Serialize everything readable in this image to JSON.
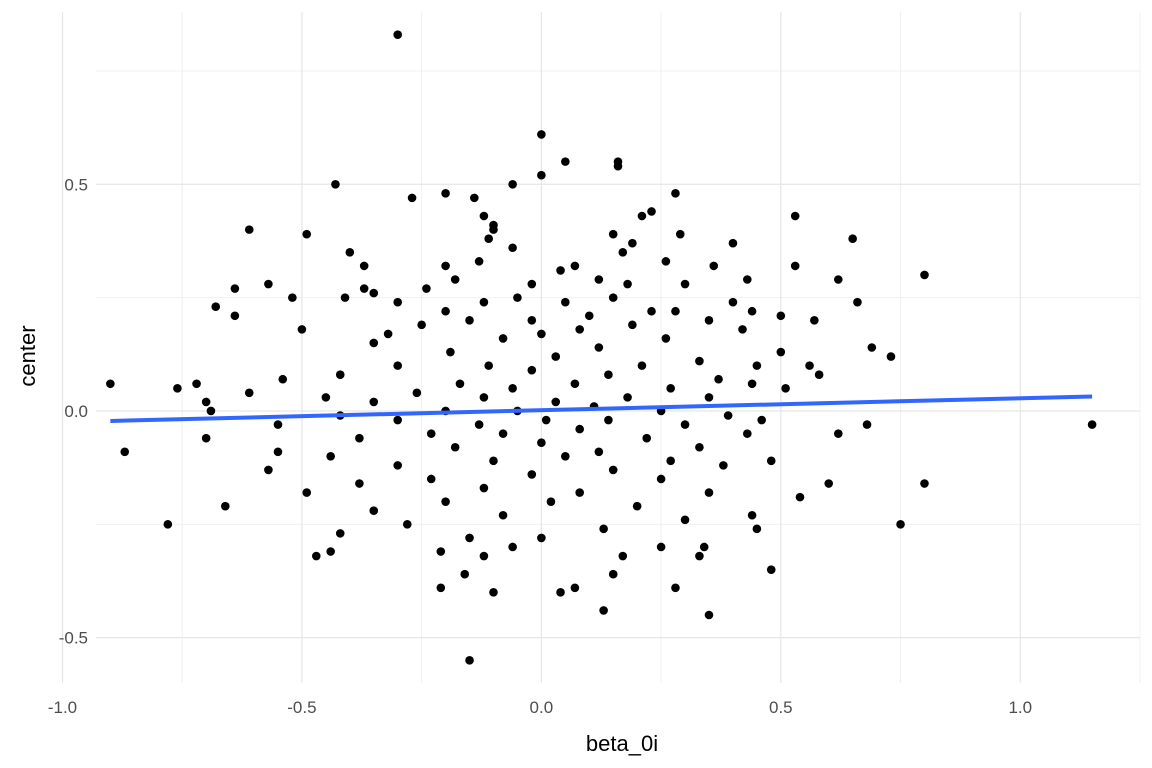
{
  "chart_data": {
    "type": "scatter",
    "title": "",
    "xlabel": "beta_0i",
    "ylabel": "center",
    "xlim": [
      -0.93,
      1.25
    ],
    "ylim": [
      -0.6,
      0.88
    ],
    "x_ticks": [
      -1.0,
      -0.5,
      0.0,
      0.5,
      1.0
    ],
    "x_tick_labels": [
      "-1.0",
      "-0.5",
      "0.0",
      "0.5",
      "1.0"
    ],
    "y_ticks": [
      -0.5,
      0.0,
      0.5
    ],
    "y_tick_labels": [
      "-0.5",
      "0.0",
      "0.5"
    ],
    "grid": true,
    "theme": "minimal",
    "point_color": "#000000",
    "fit_line": {
      "x0": -0.9,
      "y0": -0.022,
      "x1": 1.15,
      "y1": 0.032,
      "color": "#3366FF"
    },
    "points": [
      [
        -0.3,
        0.83
      ],
      [
        0.0,
        0.61
      ],
      [
        0.16,
        0.55
      ],
      [
        0.05,
        0.55
      ],
      [
        0.16,
        0.54
      ],
      [
        -0.06,
        0.5
      ],
      [
        0.0,
        0.52
      ],
      [
        -0.43,
        0.5
      ],
      [
        -0.27,
        0.47
      ],
      [
        -0.2,
        0.48
      ],
      [
        -0.14,
        0.47
      ],
      [
        0.28,
        0.48
      ],
      [
        0.53,
        0.43
      ],
      [
        0.23,
        0.44
      ],
      [
        0.21,
        0.43
      ],
      [
        -0.1,
        0.41
      ],
      [
        -0.12,
        0.43
      ],
      [
        -0.61,
        0.4
      ],
      [
        -0.1,
        0.4
      ],
      [
        -0.49,
        0.39
      ],
      [
        0.15,
        0.39
      ],
      [
        -0.11,
        0.38
      ],
      [
        0.29,
        0.39
      ],
      [
        0.65,
        0.38
      ],
      [
        0.4,
        0.37
      ],
      [
        0.19,
        0.37
      ],
      [
        -0.06,
        0.36
      ],
      [
        -0.4,
        0.35
      ],
      [
        0.17,
        0.35
      ],
      [
        0.53,
        0.32
      ],
      [
        0.8,
        0.3
      ],
      [
        -0.2,
        0.32
      ],
      [
        0.26,
        0.33
      ],
      [
        -0.13,
        0.33
      ],
      [
        -0.37,
        0.32
      ],
      [
        0.07,
        0.32
      ],
      [
        0.04,
        0.31
      ],
      [
        0.36,
        0.32
      ],
      [
        -0.18,
        0.29
      ],
      [
        0.12,
        0.29
      ],
      [
        -0.57,
        0.28
      ],
      [
        0.62,
        0.29
      ],
      [
        0.43,
        0.29
      ],
      [
        -0.02,
        0.28
      ],
      [
        0.3,
        0.28
      ],
      [
        -0.24,
        0.27
      ],
      [
        0.18,
        0.28
      ],
      [
        -0.37,
        0.27
      ],
      [
        -0.64,
        0.27
      ],
      [
        -0.52,
        0.25
      ],
      [
        -0.35,
        0.26
      ],
      [
        0.66,
        0.24
      ],
      [
        -0.41,
        0.25
      ],
      [
        -0.12,
        0.24
      ],
      [
        0.4,
        0.24
      ],
      [
        -0.3,
        0.24
      ],
      [
        0.05,
        0.24
      ],
      [
        -0.05,
        0.25
      ],
      [
        0.15,
        0.25
      ],
      [
        0.23,
        0.22
      ],
      [
        -0.68,
        0.23
      ],
      [
        0.28,
        0.22
      ],
      [
        -0.2,
        0.22
      ],
      [
        0.44,
        0.22
      ],
      [
        -0.02,
        0.2
      ],
      [
        0.1,
        0.21
      ],
      [
        0.35,
        0.2
      ],
      [
        0.57,
        0.2
      ],
      [
        -0.25,
        0.19
      ],
      [
        0.5,
        0.21
      ],
      [
        -0.15,
        0.2
      ],
      [
        0.19,
        0.19
      ],
      [
        -0.64,
        0.21
      ],
      [
        0.42,
        0.18
      ],
      [
        -0.5,
        0.18
      ],
      [
        0.08,
        0.18
      ],
      [
        0.0,
        0.17
      ],
      [
        -0.32,
        0.17
      ],
      [
        -0.08,
        0.16
      ],
      [
        0.26,
        0.16
      ],
      [
        -0.35,
        0.15
      ],
      [
        0.12,
        0.14
      ],
      [
        0.69,
        0.14
      ],
      [
        -0.19,
        0.13
      ],
      [
        0.5,
        0.13
      ],
      [
        0.73,
        0.12
      ],
      [
        0.03,
        0.12
      ],
      [
        -0.3,
        0.1
      ],
      [
        -0.11,
        0.1
      ],
      [
        0.33,
        0.11
      ],
      [
        0.21,
        0.1
      ],
      [
        -0.02,
        0.09
      ],
      [
        0.45,
        0.1
      ],
      [
        0.56,
        0.1
      ],
      [
        -0.42,
        0.08
      ],
      [
        0.14,
        0.08
      ],
      [
        -0.17,
        0.06
      ],
      [
        0.37,
        0.07
      ],
      [
        0.07,
        0.06
      ],
      [
        -0.54,
        0.07
      ],
      [
        0.58,
        0.08
      ],
      [
        -0.9,
        0.06
      ],
      [
        -0.72,
        0.06
      ],
      [
        0.27,
        0.05
      ],
      [
        -0.06,
        0.05
      ],
      [
        0.44,
        0.06
      ],
      [
        -0.76,
        0.05
      ],
      [
        -0.26,
        0.04
      ],
      [
        0.18,
        0.03
      ],
      [
        -0.12,
        0.03
      ],
      [
        0.51,
        0.05
      ],
      [
        -0.45,
        0.03
      ],
      [
        0.03,
        0.02
      ],
      [
        0.35,
        0.03
      ],
      [
        -0.35,
        0.02
      ],
      [
        -0.61,
        0.04
      ],
      [
        -0.7,
        0.02
      ],
      [
        0.11,
        0.01
      ],
      [
        -0.2,
        0.0
      ],
      [
        0.25,
        0.0
      ],
      [
        -0.05,
        0.0
      ],
      [
        -0.69,
        0.0
      ],
      [
        0.39,
        -0.01
      ],
      [
        0.46,
        -0.02
      ],
      [
        -0.42,
        -0.01
      ],
      [
        0.01,
        -0.02
      ],
      [
        0.14,
        -0.02
      ],
      [
        -0.3,
        -0.02
      ],
      [
        -0.13,
        -0.03
      ],
      [
        0.3,
        -0.03
      ],
      [
        -0.55,
        -0.03
      ],
      [
        0.68,
        -0.03
      ],
      [
        1.15,
        -0.03
      ],
      [
        0.08,
        -0.04
      ],
      [
        -0.23,
        -0.05
      ],
      [
        -0.08,
        -0.05
      ],
      [
        0.43,
        -0.05
      ],
      [
        -0.7,
        -0.06
      ],
      [
        -0.38,
        -0.06
      ],
      [
        0.62,
        -0.05
      ],
      [
        0.22,
        -0.06
      ],
      [
        0.0,
        -0.07
      ],
      [
        -0.18,
        -0.08
      ],
      [
        0.33,
        -0.08
      ],
      [
        -0.55,
        -0.09
      ],
      [
        -0.87,
        -0.09
      ],
      [
        0.12,
        -0.09
      ],
      [
        -0.44,
        -0.1
      ],
      [
        0.05,
        -0.1
      ],
      [
        -0.1,
        -0.11
      ],
      [
        0.27,
        -0.11
      ],
      [
        0.48,
        -0.11
      ],
      [
        -0.3,
        -0.12
      ],
      [
        0.15,
        -0.13
      ],
      [
        -0.57,
        -0.13
      ],
      [
        0.38,
        -0.12
      ],
      [
        -0.02,
        -0.14
      ],
      [
        -0.23,
        -0.15
      ],
      [
        0.25,
        -0.15
      ],
      [
        0.8,
        -0.16
      ],
      [
        -0.38,
        -0.16
      ],
      [
        0.6,
        -0.16
      ],
      [
        -0.12,
        -0.17
      ],
      [
        0.08,
        -0.18
      ],
      [
        -0.49,
        -0.18
      ],
      [
        0.35,
        -0.18
      ],
      [
        -0.2,
        -0.2
      ],
      [
        0.54,
        -0.19
      ],
      [
        0.02,
        -0.2
      ],
      [
        -0.66,
        -0.21
      ],
      [
        0.2,
        -0.21
      ],
      [
        -0.35,
        -0.22
      ],
      [
        0.44,
        -0.23
      ],
      [
        -0.08,
        -0.23
      ],
      [
        0.3,
        -0.24
      ],
      [
        -0.78,
        -0.25
      ],
      [
        0.75,
        -0.25
      ],
      [
        -0.28,
        -0.25
      ],
      [
        0.13,
        -0.26
      ],
      [
        -0.42,
        -0.27
      ],
      [
        0.45,
        -0.26
      ],
      [
        -0.15,
        -0.28
      ],
      [
        0.0,
        -0.28
      ],
      [
        0.34,
        -0.3
      ],
      [
        -0.44,
        -0.31
      ],
      [
        -0.21,
        -0.31
      ],
      [
        0.25,
        -0.3
      ],
      [
        -0.06,
        -0.3
      ],
      [
        -0.47,
        -0.32
      ],
      [
        0.17,
        -0.32
      ],
      [
        -0.12,
        -0.32
      ],
      [
        0.33,
        -0.32
      ],
      [
        0.48,
        -0.35
      ],
      [
        -0.16,
        -0.36
      ],
      [
        0.15,
        -0.36
      ],
      [
        -0.21,
        -0.39
      ],
      [
        -0.1,
        -0.4
      ],
      [
        0.04,
        -0.4
      ],
      [
        0.28,
        -0.39
      ],
      [
        0.07,
        -0.39
      ],
      [
        0.13,
        -0.44
      ],
      [
        0.35,
        -0.45
      ],
      [
        -0.15,
        -0.55
      ]
    ]
  }
}
